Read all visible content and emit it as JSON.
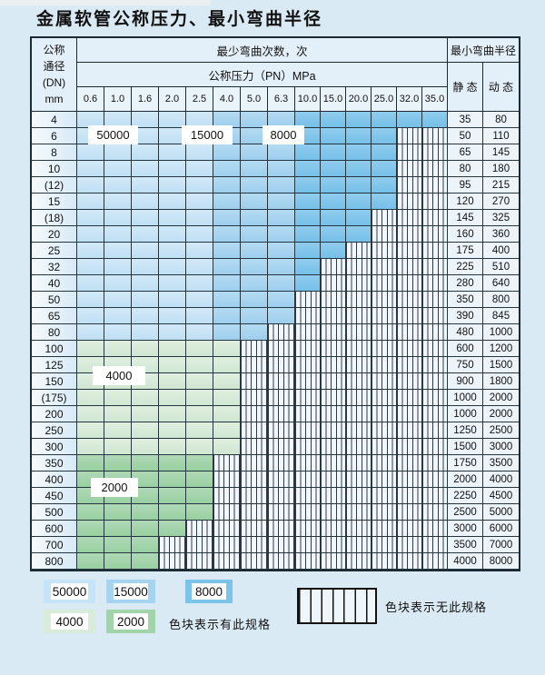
{
  "page_title": "金属软管公称压力、最小弯曲半径",
  "table": {
    "corner": [
      "公称",
      "通径",
      "(DN)",
      "mm"
    ],
    "bend_times_header": "最少弯曲次数，次",
    "pressure_header": "公称压力（PN）MPa",
    "radius_header": "最小弯曲半径",
    "static_label": "静 态",
    "dynamic_label": "动 态",
    "pressure_columns": [
      "0.6",
      "1.0",
      "1.6",
      "2.0",
      "2.5",
      "4.0",
      "5.0",
      "6.3",
      "10.0",
      "15.0",
      "20.0",
      "25.0",
      "32.0",
      "35.0"
    ],
    "rows": [
      {
        "dn": "4",
        "colored": 14,
        "band": "blue",
        "static": "35",
        "dynamic": "80"
      },
      {
        "dn": "6",
        "colored": 12,
        "band": "blue",
        "static": "50",
        "dynamic": "110"
      },
      {
        "dn": "8",
        "colored": 12,
        "band": "blue",
        "static": "65",
        "dynamic": "145"
      },
      {
        "dn": "10",
        "colored": 12,
        "band": "blue",
        "static": "80",
        "dynamic": "180"
      },
      {
        "dn": "(12)",
        "colored": 12,
        "band": "blue",
        "static": "95",
        "dynamic": "215"
      },
      {
        "dn": "15",
        "colored": 12,
        "band": "blue",
        "static": "120",
        "dynamic": "270"
      },
      {
        "dn": "(18)",
        "colored": 11,
        "band": "blue",
        "static": "145",
        "dynamic": "325"
      },
      {
        "dn": "20",
        "colored": 11,
        "band": "blue",
        "static": "160",
        "dynamic": "360"
      },
      {
        "dn": "25",
        "colored": 10,
        "band": "blue",
        "static": "175",
        "dynamic": "400"
      },
      {
        "dn": "32",
        "colored": 9,
        "band": "blue",
        "static": "225",
        "dynamic": "510"
      },
      {
        "dn": "40",
        "colored": 9,
        "band": "blue",
        "static": "280",
        "dynamic": "640"
      },
      {
        "dn": "50",
        "colored": 8,
        "band": "blue",
        "static": "350",
        "dynamic": "800"
      },
      {
        "dn": "65",
        "colored": 8,
        "band": "blue",
        "static": "390",
        "dynamic": "845"
      },
      {
        "dn": "80",
        "colored": 7,
        "band": "blue",
        "static": "480",
        "dynamic": "1000"
      },
      {
        "dn": "100",
        "colored": 6,
        "band": "g4000",
        "static": "600",
        "dynamic": "1200"
      },
      {
        "dn": "125",
        "colored": 6,
        "band": "g4000",
        "static": "750",
        "dynamic": "1500"
      },
      {
        "dn": "150",
        "colored": 6,
        "band": "g4000",
        "static": "900",
        "dynamic": "1800"
      },
      {
        "dn": "(175)",
        "colored": 6,
        "band": "g4000",
        "static": "1000",
        "dynamic": "2000"
      },
      {
        "dn": "200",
        "colored": 6,
        "band": "g4000",
        "static": "1000",
        "dynamic": "2000"
      },
      {
        "dn": "250",
        "colored": 6,
        "band": "g4000",
        "static": "1250",
        "dynamic": "2500"
      },
      {
        "dn": "300",
        "colored": 6,
        "band": "g4000",
        "static": "1500",
        "dynamic": "3000"
      },
      {
        "dn": "350",
        "colored": 5,
        "band": "g2000",
        "static": "1750",
        "dynamic": "3500"
      },
      {
        "dn": "400",
        "colored": 5,
        "band": "g2000",
        "static": "2000",
        "dynamic": "4000"
      },
      {
        "dn": "450",
        "colored": 5,
        "band": "g2000",
        "static": "2250",
        "dynamic": "4500"
      },
      {
        "dn": "500",
        "colored": 5,
        "band": "g2000",
        "static": "2500",
        "dynamic": "5000"
      },
      {
        "dn": "600",
        "colored": 4,
        "band": "g2000",
        "static": "3000",
        "dynamic": "6000"
      },
      {
        "dn": "700",
        "colored": 3,
        "band": "g2000",
        "static": "3500",
        "dynamic": "7000"
      },
      {
        "dn": "800",
        "colored": 3,
        "band": "g2000",
        "static": "4000",
        "dynamic": "8000"
      }
    ]
  },
  "region_labels": {
    "b50000": "50000",
    "b15000": "15000",
    "b8000": "8000",
    "g4000": "4000",
    "g2000": "2000"
  },
  "legend": {
    "has_spec_note": "色块表示有此规格",
    "no_spec_note": "色块表示无此规格",
    "items": [
      {
        "label": "50000",
        "color": "#c6e4f7"
      },
      {
        "label": "15000",
        "color": "#a5d4f0"
      },
      {
        "label": "8000",
        "color": "#7cc3ea"
      },
      {
        "label": "4000",
        "color": "#d8ecd9"
      },
      {
        "label": "2000",
        "color": "#a2d4aa"
      }
    ]
  },
  "chart_data": {
    "type": "table",
    "title": "金属软管公称压力、最小弯曲半径",
    "columns_pressure_PN_MPa": [
      0.6,
      1.0,
      1.6,
      2.0,
      2.5,
      4.0,
      5.0,
      6.3,
      10.0,
      15.0,
      20.0,
      25.0,
      32.0,
      35.0
    ],
    "cycle_color_bands": [
      {
        "min_bend_cycles": 50000,
        "pressure_range_MPa": [
          0.6,
          2.5
        ],
        "applies_to_DN": "4-80",
        "color": "#c6e4f7"
      },
      {
        "min_bend_cycles": 15000,
        "pressure_range_MPa": [
          4.0,
          6.3
        ],
        "applies_to_DN": "4-80",
        "color": "#a5d4f0"
      },
      {
        "min_bend_cycles": 8000,
        "pressure_range_MPa": [
          10.0,
          35.0
        ],
        "applies_to_DN": "4-80",
        "color": "#7cc3ea"
      },
      {
        "min_bend_cycles": 4000,
        "pressure_range_MPa": [
          0.6,
          4.0
        ],
        "applies_to_DN": "100-300",
        "color": "#d8ecd9"
      },
      {
        "min_bend_cycles": 2000,
        "pressure_range_MPa": [
          0.6,
          2.5
        ],
        "applies_to_DN": "350-800",
        "color": "#a2d4aa"
      }
    ],
    "striped_cells_meaning": "无此规格 (no such specification)",
    "rows": [
      {
        "DN": "4",
        "max_PN_MPa": 35.0,
        "static_radius": 35,
        "dynamic_radius": 80
      },
      {
        "DN": "6",
        "max_PN_MPa": 25.0,
        "static_radius": 50,
        "dynamic_radius": 110
      },
      {
        "DN": "8",
        "max_PN_MPa": 25.0,
        "static_radius": 65,
        "dynamic_radius": 145
      },
      {
        "DN": "10",
        "max_PN_MPa": 25.0,
        "static_radius": 80,
        "dynamic_radius": 180
      },
      {
        "DN": "(12)",
        "max_PN_MPa": 25.0,
        "static_radius": 95,
        "dynamic_radius": 215
      },
      {
        "DN": "15",
        "max_PN_MPa": 25.0,
        "static_radius": 120,
        "dynamic_radius": 270
      },
      {
        "DN": "(18)",
        "max_PN_MPa": 20.0,
        "static_radius": 145,
        "dynamic_radius": 325
      },
      {
        "DN": "20",
        "max_PN_MPa": 20.0,
        "static_radius": 160,
        "dynamic_radius": 360
      },
      {
        "DN": "25",
        "max_PN_MPa": 15.0,
        "static_radius": 175,
        "dynamic_radius": 400
      },
      {
        "DN": "32",
        "max_PN_MPa": 10.0,
        "static_radius": 225,
        "dynamic_radius": 510
      },
      {
        "DN": "40",
        "max_PN_MPa": 10.0,
        "static_radius": 280,
        "dynamic_radius": 640
      },
      {
        "DN": "50",
        "max_PN_MPa": 6.3,
        "static_radius": 350,
        "dynamic_radius": 800
      },
      {
        "DN": "65",
        "max_PN_MPa": 6.3,
        "static_radius": 390,
        "dynamic_radius": 845
      },
      {
        "DN": "80",
        "max_PN_MPa": 5.0,
        "static_radius": 480,
        "dynamic_radius": 1000
      },
      {
        "DN": "100",
        "max_PN_MPa": 4.0,
        "static_radius": 600,
        "dynamic_radius": 1200
      },
      {
        "DN": "125",
        "max_PN_MPa": 4.0,
        "static_radius": 750,
        "dynamic_radius": 1500
      },
      {
        "DN": "150",
        "max_PN_MPa": 4.0,
        "static_radius": 900,
        "dynamic_radius": 1800
      },
      {
        "DN": "(175)",
        "max_PN_MPa": 4.0,
        "static_radius": 1000,
        "dynamic_radius": 2000
      },
      {
        "DN": "200",
        "max_PN_MPa": 4.0,
        "static_radius": 1000,
        "dynamic_radius": 2000
      },
      {
        "DN": "250",
        "max_PN_MPa": 4.0,
        "static_radius": 1250,
        "dynamic_radius": 2500
      },
      {
        "DN": "300",
        "max_PN_MPa": 4.0,
        "static_radius": 1500,
        "dynamic_radius": 3000
      },
      {
        "DN": "350",
        "max_PN_MPa": 2.5,
        "static_radius": 1750,
        "dynamic_radius": 3500
      },
      {
        "DN": "400",
        "max_PN_MPa": 2.5,
        "static_radius": 2000,
        "dynamic_radius": 4000
      },
      {
        "DN": "450",
        "max_PN_MPa": 2.5,
        "static_radius": 2250,
        "dynamic_radius": 4500
      },
      {
        "DN": "500",
        "max_PN_MPa": 2.5,
        "static_radius": 2500,
        "dynamic_radius": 5000
      },
      {
        "DN": "600",
        "max_PN_MPa": 2.0,
        "static_radius": 3000,
        "dynamic_radius": 6000
      },
      {
        "DN": "700",
        "max_PN_MPa": 1.6,
        "static_radius": 3500,
        "dynamic_radius": 7000
      },
      {
        "DN": "800",
        "max_PN_MPa": 1.6,
        "static_radius": 4000,
        "dynamic_radius": 8000
      }
    ]
  }
}
